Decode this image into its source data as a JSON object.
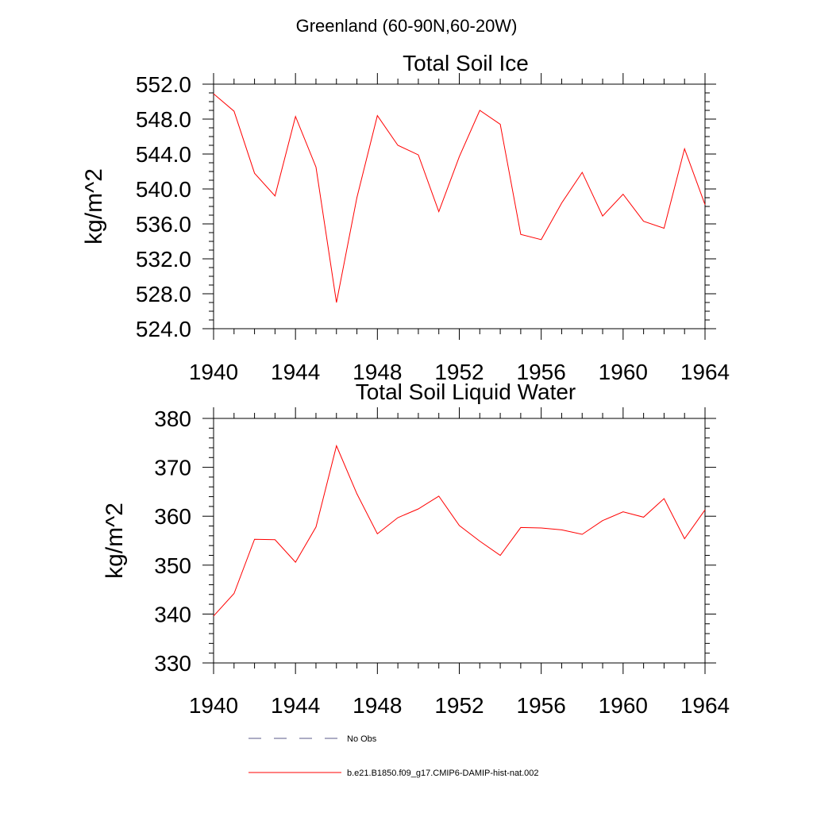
{
  "figure": {
    "title": "Greenland (60-90N,60-20W)"
  },
  "legend": {
    "placement": "bottom",
    "entries": [
      {
        "label": "No Obs",
        "color": "#5a5a8a",
        "style": "dashed"
      },
      {
        "label": "b.e21.B1850.f09_g17.CMIP6-DAMIP-hist-nat.002",
        "color": "#ff0000",
        "style": "solid"
      }
    ]
  },
  "chart_data": [
    {
      "type": "line",
      "title": "Total Soil Ice",
      "xlabel": "",
      "ylabel": "kg/m^2",
      "xlim": [
        1940,
        1964
      ],
      "ylim": [
        524,
        552
      ],
      "xticks": [
        1940,
        1944,
        1948,
        1952,
        1956,
        1960,
        1964
      ],
      "xtick_labels": [
        "1940",
        "1944",
        "1948",
        "1952",
        "1956",
        "1960",
        "1964"
      ],
      "yticks": [
        524,
        528,
        532,
        536,
        540,
        544,
        548,
        552
      ],
      "ytick_labels": [
        "524.0",
        "528.0",
        "532.0",
        "536.0",
        "540.0",
        "544.0",
        "548.0",
        "552.0"
      ],
      "yminor_step": 1,
      "grid": false,
      "series": [
        {
          "name": "b.e21.B1850.f09_g17.CMIP6-DAMIP-hist-nat.002",
          "color": "#ff0000",
          "x": [
            1940,
            1941,
            1942,
            1943,
            1944,
            1945,
            1946,
            1947,
            1948,
            1949,
            1950,
            1951,
            1952,
            1953,
            1954,
            1955,
            1956,
            1957,
            1958,
            1959,
            1960,
            1961,
            1962,
            1963,
            1964
          ],
          "values": [
            550.9,
            548.9,
            541.8,
            539.2,
            548.3,
            542.5,
            527.0,
            539.0,
            548.4,
            545.0,
            543.9,
            537.4,
            543.7,
            549.0,
            547.4,
            534.8,
            534.2,
            538.4,
            541.9,
            536.9,
            539.4,
            536.3,
            535.5,
            544.6,
            538.2
          ]
        }
      ]
    },
    {
      "type": "line",
      "title": "Total Soil Liquid Water",
      "xlabel": "",
      "ylabel": "kg/m^2",
      "xlim": [
        1940,
        1964
      ],
      "ylim": [
        330,
        380
      ],
      "xticks": [
        1940,
        1944,
        1948,
        1952,
        1956,
        1960,
        1964
      ],
      "xtick_labels": [
        "1940",
        "1944",
        "1948",
        "1952",
        "1956",
        "1960",
        "1964"
      ],
      "yticks": [
        330,
        340,
        350,
        360,
        370,
        380
      ],
      "ytick_labels": [
        "330",
        "340",
        "350",
        "360",
        "370",
        "380"
      ],
      "yminor_step": 2,
      "grid": false,
      "series": [
        {
          "name": "b.e21.B1850.f09_g17.CMIP6-DAMIP-hist-nat.002",
          "color": "#ff0000",
          "x": [
            1940,
            1941,
            1942,
            1943,
            1944,
            1945,
            1946,
            1947,
            1948,
            1949,
            1950,
            1951,
            1952,
            1953,
            1954,
            1955,
            1956,
            1957,
            1958,
            1959,
            1960,
            1961,
            1962,
            1963,
            1964
          ],
          "values": [
            339.6,
            344.2,
            355.3,
            355.2,
            350.6,
            357.8,
            374.4,
            364.6,
            356.4,
            359.7,
            361.5,
            364.1,
            358.1,
            354.9,
            352.0,
            357.7,
            357.6,
            357.2,
            356.3,
            359.1,
            360.9,
            359.8,
            363.6,
            355.4,
            361.3
          ]
        }
      ]
    }
  ]
}
